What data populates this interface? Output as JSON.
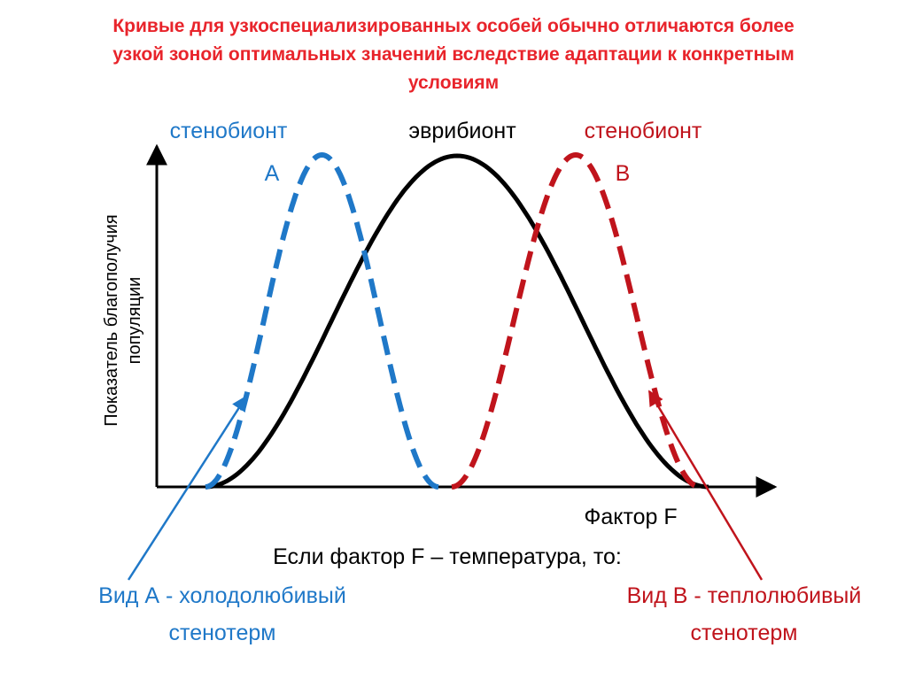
{
  "title_lines": [
    "Кривые для узкоспециализированных особей обычно отличаются более",
    "узкой зоной оптимальных значений вследствие адаптации к конкретным",
    "условиям"
  ],
  "curves": {
    "stenobiont_a": {
      "label": "стенобионт",
      "letter": "А",
      "color": "#1f78c8",
      "style": "dashed"
    },
    "eurybiont": {
      "label": "эврибионт",
      "color": "#000000",
      "style": "solid"
    },
    "stenobiont_b": {
      "label": "стенобионт",
      "letter": "В",
      "color": "#c0141c",
      "style": "dashed"
    }
  },
  "axes": {
    "ylabel_line1": "Показатель благополучия",
    "ylabel_line2": "популяции",
    "xlabel": "Фактор F"
  },
  "condition": "Если фактор F – температура, то:",
  "species_a": {
    "line1": "Вид А - холодолюбивый",
    "line2": "стенотерм",
    "color": "#1f78c8"
  },
  "species_b": {
    "line1": "Вид В - теплолюбивый",
    "line2": "стенотерм",
    "color": "#c0141c"
  }
}
